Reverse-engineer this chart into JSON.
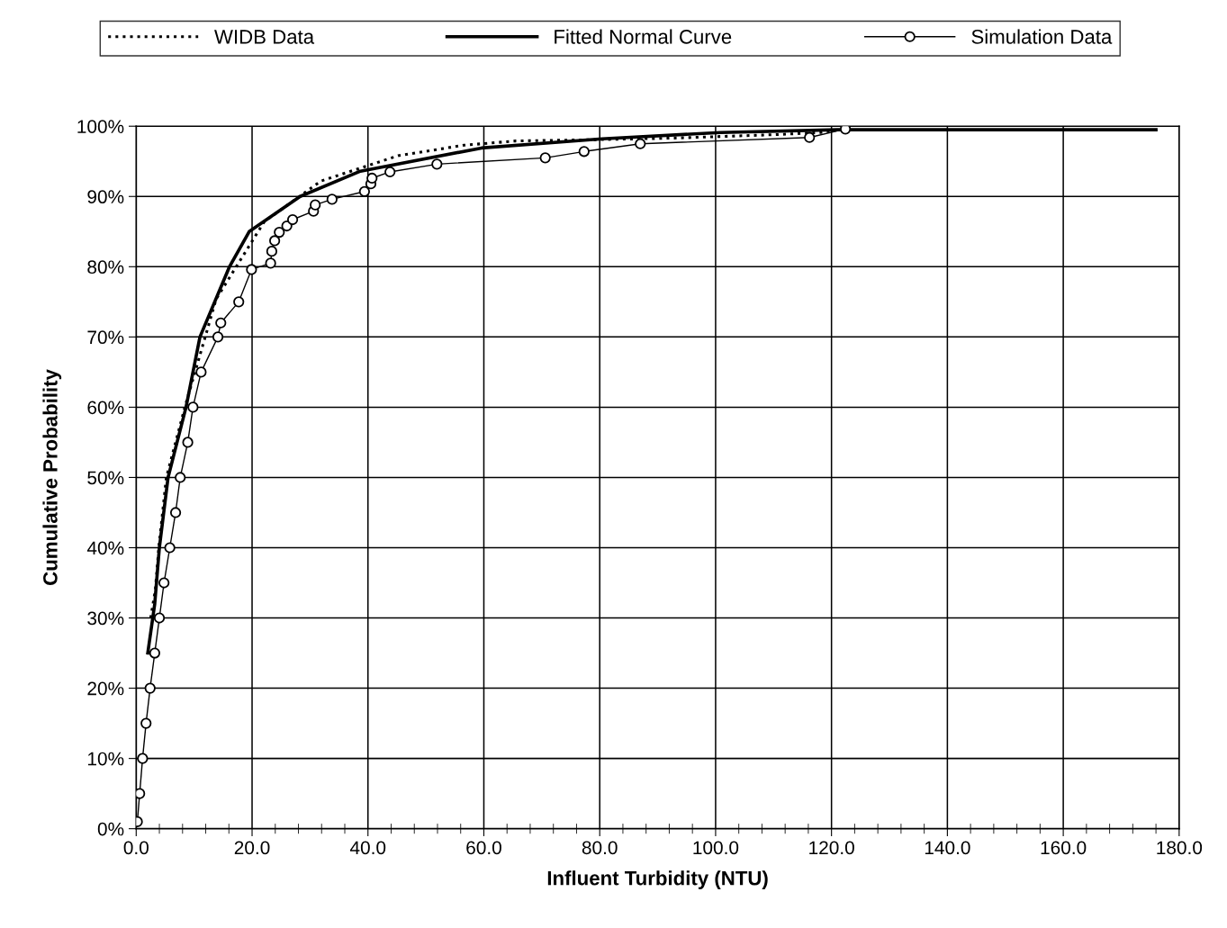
{
  "chart_data": {
    "type": "line",
    "xlabel": "Influent Turbidity (NTU)",
    "ylabel": "Cumulative Probability",
    "xlim": [
      0,
      180
    ],
    "ylim": [
      0,
      100
    ],
    "xticks": [
      {
        "value": 0,
        "label": "0.0"
      },
      {
        "value": 4,
        "label": null
      },
      {
        "value": 8,
        "label": null
      },
      {
        "value": 12,
        "label": null
      },
      {
        "value": 16,
        "label": null
      },
      {
        "value": 20,
        "label": "20.0"
      },
      {
        "value": 24,
        "label": null
      },
      {
        "value": 28,
        "label": null
      },
      {
        "value": 32,
        "label": null
      },
      {
        "value": 36,
        "label": null
      },
      {
        "value": 40,
        "label": "40.0"
      },
      {
        "value": 44,
        "label": null
      },
      {
        "value": 48,
        "label": null
      },
      {
        "value": 52,
        "label": null
      },
      {
        "value": 56,
        "label": null
      },
      {
        "value": 60,
        "label": "60.0"
      },
      {
        "value": 64,
        "label": null
      },
      {
        "value": 68,
        "label": null
      },
      {
        "value": 72,
        "label": null
      },
      {
        "value": 76,
        "label": null
      },
      {
        "value": 80,
        "label": "80.0"
      },
      {
        "value": 84,
        "label": null
      },
      {
        "value": 88,
        "label": null
      },
      {
        "value": 92,
        "label": null
      },
      {
        "value": 96,
        "label": null
      },
      {
        "value": 100,
        "label": "100.0"
      },
      {
        "value": 104,
        "label": null
      },
      {
        "value": 108,
        "label": null
      },
      {
        "value": 112,
        "label": null
      },
      {
        "value": 116,
        "label": null
      },
      {
        "value": 120,
        "label": "120.0"
      },
      {
        "value": 124,
        "label": null
      },
      {
        "value": 128,
        "label": null
      },
      {
        "value": 132,
        "label": null
      },
      {
        "value": 136,
        "label": null
      },
      {
        "value": 140,
        "label": "140.0"
      },
      {
        "value": 144,
        "label": null
      },
      {
        "value": 148,
        "label": null
      },
      {
        "value": 152,
        "label": null
      },
      {
        "value": 156,
        "label": null
      },
      {
        "value": 160,
        "label": "160.0"
      },
      {
        "value": 164,
        "label": null
      },
      {
        "value": 168,
        "label": null
      },
      {
        "value": 172,
        "label": null
      },
      {
        "value": 176,
        "label": null
      },
      {
        "value": 180,
        "label": "180.0"
      }
    ],
    "yticks": [
      {
        "value": 0,
        "label": "0%"
      },
      {
        "value": 10,
        "label": "10%"
      },
      {
        "value": 20,
        "label": "20%"
      },
      {
        "value": 30,
        "label": "30%"
      },
      {
        "value": 40,
        "label": "40%"
      },
      {
        "value": 50,
        "label": "50%"
      },
      {
        "value": 60,
        "label": "60%"
      },
      {
        "value": 70,
        "label": "70%"
      },
      {
        "value": 80,
        "label": "80%"
      },
      {
        "value": 90,
        "label": "90%"
      },
      {
        "value": 100,
        "label": "100%"
      }
    ],
    "grid": true,
    "legend": "top",
    "series": [
      {
        "name": "WIDB Data",
        "color": "#000000",
        "line_style": "dotted",
        "marker": "none",
        "x": [
          2.5,
          3.3,
          3.9,
          5.2,
          8.4,
          13.8,
          22.1,
          31.9,
          45.2,
          56.6,
          65.5,
          80.4,
          92.4,
          110.3,
          118.1,
          122.0
        ],
        "values": [
          30,
          34,
          40,
          50,
          60,
          75.4,
          86.4,
          92.2,
          95.8,
          97.3,
          97.9,
          98.1,
          98.3,
          98.8,
          99.1,
          99.6
        ]
      },
      {
        "name": "Fitted Normal Curve",
        "color": "#000000",
        "line_style": "solid",
        "marker": "none",
        "x": [
          2.0,
          3.2,
          4.0,
          5.5,
          8.6,
          11.0,
          16.1,
          19.5,
          28.3,
          38.7,
          59.6,
          80.4,
          100.8,
          121.0,
          176.0
        ],
        "values": [
          25,
          32,
          40,
          50,
          60,
          70,
          80,
          85,
          90,
          93.6,
          96.9,
          98.2,
          99.1,
          99.5,
          99.5
        ]
      },
      {
        "name": "Simulation Data",
        "color": "#000000",
        "line_style": "solid",
        "marker": "circle",
        "x": [
          0.2,
          0.6,
          1.1,
          1.7,
          2.4,
          3.2,
          4.0,
          4.8,
          5.8,
          6.8,
          7.6,
          8.9,
          9.8,
          11.2,
          14.1,
          14.6,
          17.7,
          19.9,
          23.2,
          23.4,
          23.9,
          24.7,
          26.0,
          27.0,
          30.6,
          30.9,
          33.8,
          39.4,
          40.5,
          40.7,
          43.8,
          51.9,
          70.6,
          77.3,
          87.0,
          116.2,
          122.4
        ],
        "values": [
          1,
          5,
          10,
          15,
          20,
          25,
          30,
          35,
          40,
          45,
          50,
          55,
          60,
          65,
          70,
          72,
          75,
          79.6,
          80.5,
          82.2,
          83.7,
          84.9,
          85.8,
          86.7,
          87.9,
          88.8,
          89.6,
          90.7,
          91.8,
          92.6,
          93.5,
          94.6,
          95.5,
          96.4,
          97.5,
          98.4,
          99.6
        ]
      }
    ]
  }
}
